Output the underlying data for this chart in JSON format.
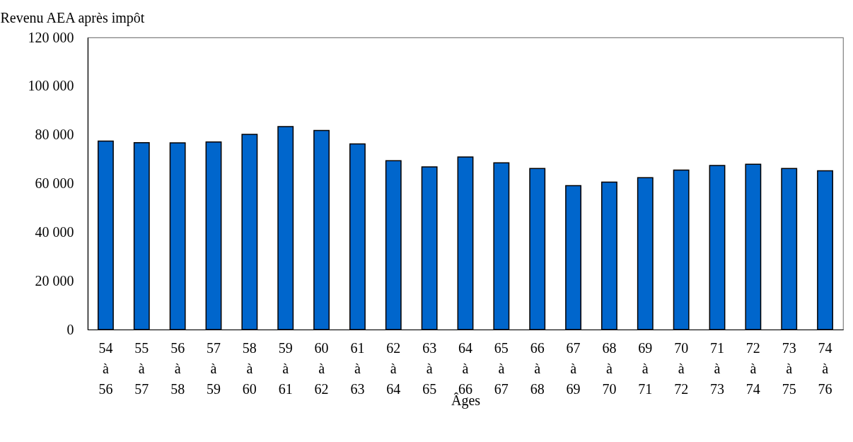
{
  "chart_data": {
    "type": "bar",
    "ylabel": "Revenu AEA après impôt",
    "xlabel": "Âges",
    "categories": [
      "54 à 56",
      "55 à 57",
      "56 à 58",
      "57 à 59",
      "58 à 60",
      "59 à 61",
      "60 à 62",
      "61 à 63",
      "62 à 64",
      "63 à 65",
      "64 à 66",
      "65 à 67",
      "66 à 68",
      "67 à 69",
      "68 à 70",
      "69 à 71",
      "70 à 72",
      "71 à 73",
      "72 à 74",
      "73 à 75",
      "74 à 76"
    ],
    "values": [
      77400,
      76800,
      76700,
      77100,
      80200,
      83400,
      81800,
      76300,
      69400,
      66800,
      70900,
      68500,
      66200,
      59100,
      60600,
      62400,
      65500,
      67400,
      67900,
      66200,
      65200
    ],
    "color": "#0066cc",
    "ylim": [
      0,
      120000
    ],
    "yticks": [
      0,
      20000,
      40000,
      60000,
      80000,
      100000,
      120000
    ],
    "grid": false
  }
}
